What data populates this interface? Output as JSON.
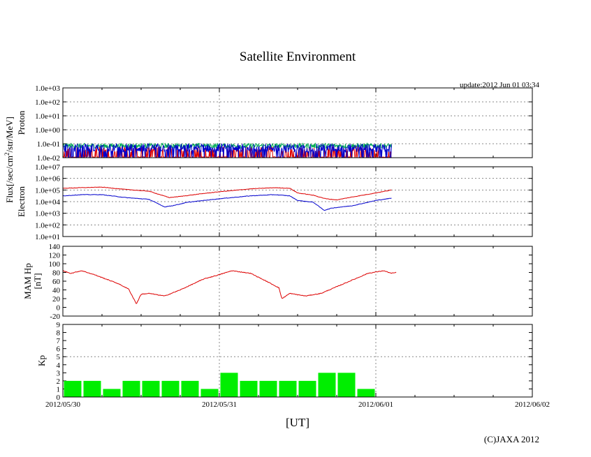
{
  "chart_data": {
    "type": "line",
    "title": "Satellite Environment",
    "update_text": "update:2012 Jun 01 03:34",
    "xlabel": "[UT]",
    "copyright": "(C)JAXA 2012",
    "x_ticks": [
      "2012/05/30",
      "2012/05/31",
      "2012/06/01",
      "2012/06/02"
    ],
    "x_range_days": [
      0,
      3
    ],
    "data_end_day": 2.1,
    "shared_ylabel": "Flux[/sec/cm2/str/MeV]",
    "shared_ylabel_base": "Flux[/sec/cm",
    "shared_ylabel_sup": "2",
    "shared_ylabel_tail": "/str/MeV]",
    "colors": {
      "red": "#dd0000",
      "blue": "#0000cc",
      "green": "#00aa55",
      "kp_bar": "#00ee00",
      "grid": "#888888"
    },
    "panels": [
      {
        "id": "proton",
        "ylabel": "Proton",
        "scale": "log",
        "ylim_exp": [
          -2,
          3
        ],
        "ytick_labels": [
          "1.0e-02",
          "1.0e-01",
          "1.0e+00",
          "1.0e+01",
          "1.0e+02",
          "1.0e+03"
        ],
        "series": [
          {
            "name": "proton-channel-1",
            "color": "red",
            "x_days": [
              0,
              0.5,
              1.0,
              1.5,
              2.1
            ],
            "log_values": [
              -1.95,
              -1.95,
              -1.95,
              -1.95,
              -1.95
            ]
          },
          {
            "name": "proton-channel-2",
            "color": "green",
            "x_days": [
              0,
              0.5,
              1.0,
              1.5,
              2.1
            ],
            "log_values": [
              -1.15,
              -1.15,
              -1.15,
              -1.15,
              -1.15
            ]
          },
          {
            "name": "proton-channel-3",
            "color": "blue",
            "x_days": [
              0,
              0.5,
              1.0,
              1.5,
              2.1
            ],
            "log_values": [
              -1.3,
              -1.3,
              -1.3,
              -1.3,
              -1.3
            ]
          }
        ]
      },
      {
        "id": "electron",
        "ylabel": "Electron",
        "scale": "log",
        "ylim_exp": [
          1,
          7
        ],
        "ytick_labels": [
          "1.0e+01",
          "1.0e+02",
          "1.0e+03",
          "1.0e+04",
          "1.0e+05",
          "1.0e+06",
          "1.0e+07"
        ],
        "series": [
          {
            "name": "electron-high",
            "color": "red",
            "x_days": [
              0,
              0.12,
              0.25,
              0.4,
              0.55,
              0.68,
              0.75,
              0.9,
              1.0,
              1.2,
              1.35,
              1.45,
              1.5,
              1.6,
              1.68,
              1.75,
              1.85,
              2.0,
              2.1
            ],
            "log_values": [
              5.15,
              5.2,
              5.25,
              5.05,
              4.9,
              4.35,
              4.45,
              4.7,
              4.85,
              5.1,
              5.2,
              5.15,
              4.75,
              4.55,
              4.25,
              4.15,
              4.4,
              4.75,
              5.0
            ]
          },
          {
            "name": "electron-low",
            "color": "blue",
            "x_days": [
              0,
              0.12,
              0.25,
              0.4,
              0.55,
              0.65,
              0.7,
              0.8,
              0.9,
              1.0,
              1.2,
              1.35,
              1.45,
              1.5,
              1.6,
              1.67,
              1.72,
              1.85,
              2.0,
              2.1
            ],
            "log_values": [
              4.5,
              4.6,
              4.6,
              4.35,
              4.2,
              3.55,
              3.65,
              3.95,
              4.1,
              4.25,
              4.5,
              4.6,
              4.5,
              4.1,
              3.95,
              3.25,
              3.45,
              3.65,
              4.1,
              4.3
            ]
          }
        ]
      },
      {
        "id": "mam-hp",
        "ylabel": "MAM Hp",
        "ylabel2": "[nT]",
        "scale": "linear",
        "ylim": [
          -20,
          140
        ],
        "ytick_values": [
          -20,
          0,
          20,
          40,
          60,
          80,
          100,
          120,
          140
        ],
        "series": [
          {
            "name": "hp",
            "color": "red",
            "x_days": [
              0,
              0.05,
              0.12,
              0.2,
              0.35,
              0.42,
              0.47,
              0.5,
              0.55,
              0.65,
              0.75,
              0.9,
              1.0,
              1.08,
              1.2,
              1.3,
              1.38,
              1.4,
              1.45,
              1.55,
              1.65,
              1.8,
              1.95,
              2.05,
              2.1,
              2.13
            ],
            "log_values": null,
            "values": [
              84,
              78,
              84,
              75,
              55,
              42,
              8,
              30,
              32,
              26,
              40,
              65,
              75,
              84,
              78,
              60,
              45,
              20,
              32,
              26,
              32,
              55,
              78,
              84,
              78,
              80
            ]
          }
        ]
      },
      {
        "id": "kp",
        "ylabel": "Kp",
        "scale": "bar",
        "ylim": [
          0,
          9
        ],
        "ytick_values": [
          0,
          1,
          2,
          3,
          4,
          5,
          6,
          7,
          8,
          9
        ],
        "dashed_level": 5,
        "bar_width_days": 0.125,
        "values": [
          2,
          2,
          1,
          2,
          2,
          2,
          2,
          1,
          3,
          2,
          2,
          2,
          2,
          3,
          3,
          1
        ]
      }
    ]
  }
}
